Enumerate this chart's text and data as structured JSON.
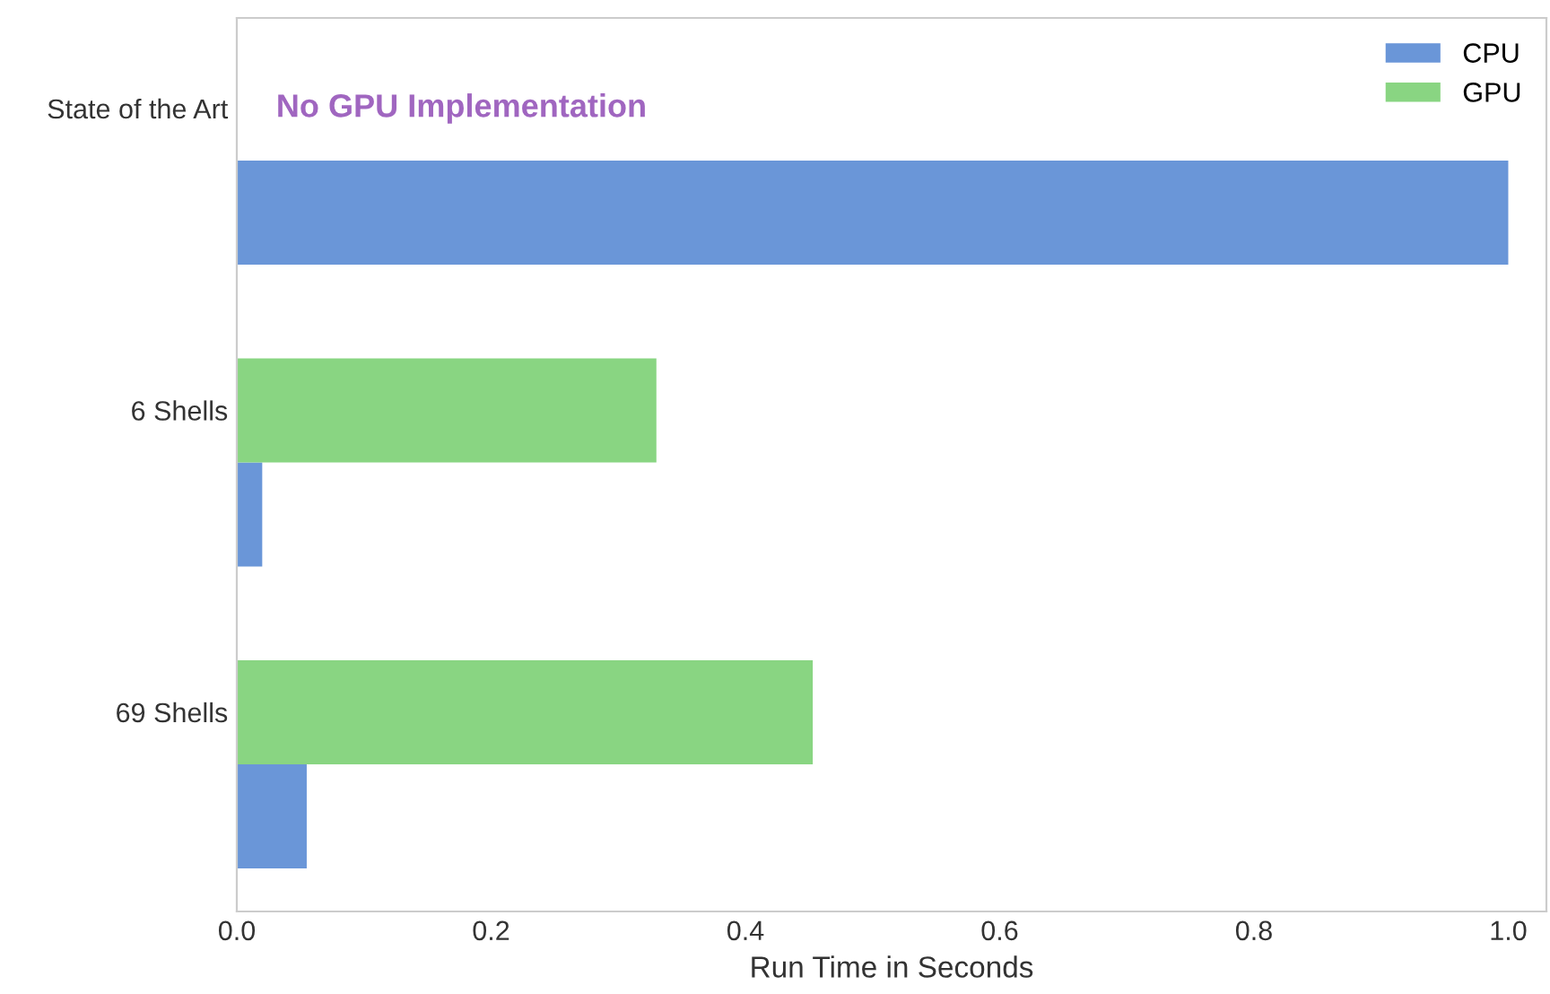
{
  "chart_data": {
    "type": "bar",
    "orientation": "horizontal",
    "xlabel": "Run Time in Seconds",
    "categories": [
      "State of the Art",
      "6 Shells",
      "69 Shells"
    ],
    "series": [
      {
        "name": "CPU",
        "color": "#6a96d8",
        "values": [
          1.0,
          0.02,
          0.055
        ]
      },
      {
        "name": "GPU",
        "color": "#89d582",
        "values": [
          null,
          0.33,
          0.453
        ]
      }
    ],
    "annotations": [
      "No GPU Implementation"
    ],
    "xlim": [
      0,
      1.03
    ],
    "xticks": [
      {
        "value": 0,
        "label": "0.0"
      },
      0.2,
      0.4,
      0.6,
      0.8,
      {
        "value": 1,
        "label": "1.0"
      }
    ],
    "grid": false,
    "legend": "top right"
  }
}
